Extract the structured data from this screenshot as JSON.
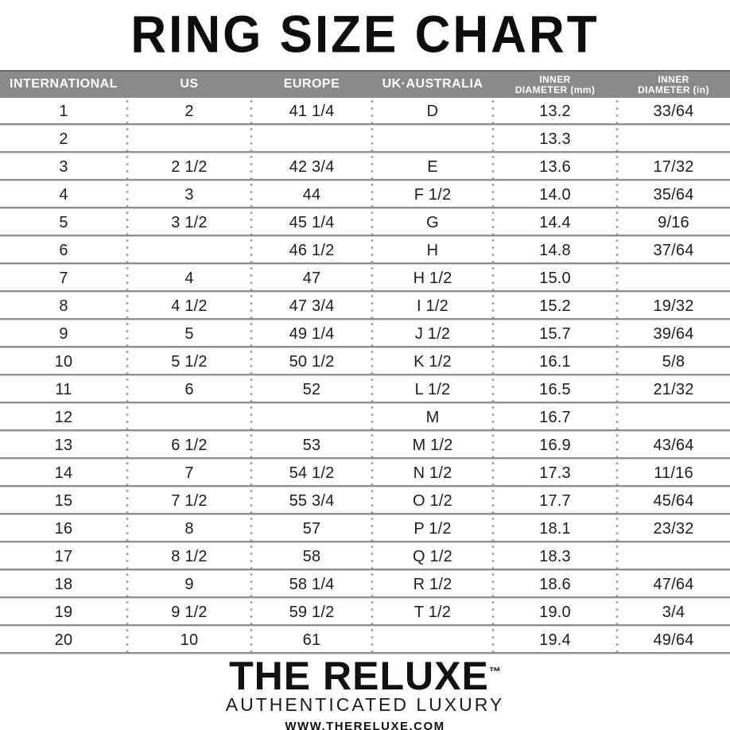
{
  "title": "RING SIZE CHART",
  "colors": {
    "header_background": "#8a8a8a",
    "header_text": "#ffffff",
    "row_line_dark": "#8f8f8f",
    "row_line_light": "#d2d2d2",
    "text": "#1a1a1a",
    "background": "#ffffff"
  },
  "chart_data": {
    "type": "table",
    "title": "RING SIZE CHART",
    "columns": [
      {
        "label": "INTERNATIONAL"
      },
      {
        "label": "US"
      },
      {
        "label": "EUROPE"
      },
      {
        "label": "UK·AUSTRALIA"
      },
      {
        "label": "INNER\nDIAMETER (mm)"
      },
      {
        "label": "INNER\nDIAMETER (in)"
      }
    ],
    "rows": [
      {
        "international": "1",
        "us": "2",
        "europe": "41 1/4",
        "uk_australia": "D",
        "inner_diameter_mm": "13.2",
        "inner_diameter_in": "33/64"
      },
      {
        "international": "2",
        "us": "",
        "europe": "",
        "uk_australia": "",
        "inner_diameter_mm": "13.3",
        "inner_diameter_in": ""
      },
      {
        "international": "3",
        "us": "2 1/2",
        "europe": "42 3/4",
        "uk_australia": "E",
        "inner_diameter_mm": "13.6",
        "inner_diameter_in": "17/32"
      },
      {
        "international": "4",
        "us": "3",
        "europe": "44",
        "uk_australia": "F 1/2",
        "inner_diameter_mm": "14.0",
        "inner_diameter_in": "35/64"
      },
      {
        "international": "5",
        "us": "3 1/2",
        "europe": "45 1/4",
        "uk_australia": "G",
        "inner_diameter_mm": "14.4",
        "inner_diameter_in": "9/16"
      },
      {
        "international": "6",
        "us": "",
        "europe": "46 1/2",
        "uk_australia": "H",
        "inner_diameter_mm": "14.8",
        "inner_diameter_in": "37/64"
      },
      {
        "international": "7",
        "us": "4",
        "europe": "47",
        "uk_australia": "H 1/2",
        "inner_diameter_mm": "15.0",
        "inner_diameter_in": ""
      },
      {
        "international": "8",
        "us": "4 1/2",
        "europe": "47 3/4",
        "uk_australia": "I 1/2",
        "inner_diameter_mm": "15.2",
        "inner_diameter_in": "19/32"
      },
      {
        "international": "9",
        "us": "5",
        "europe": "49 1/4",
        "uk_australia": "J 1/2",
        "inner_diameter_mm": "15.7",
        "inner_diameter_in": "39/64"
      },
      {
        "international": "10",
        "us": "5 1/2",
        "europe": "50 1/2",
        "uk_australia": "K 1/2",
        "inner_diameter_mm": "16.1",
        "inner_diameter_in": "5/8"
      },
      {
        "international": "11",
        "us": "6",
        "europe": "52",
        "uk_australia": "L 1/2",
        "inner_diameter_mm": "16.5",
        "inner_diameter_in": "21/32"
      },
      {
        "international": "12",
        "us": "",
        "europe": "",
        "uk_australia": "M",
        "inner_diameter_mm": "16.7",
        "inner_diameter_in": ""
      },
      {
        "international": "13",
        "us": "6 1/2",
        "europe": "53",
        "uk_australia": "M 1/2",
        "inner_diameter_mm": "16.9",
        "inner_diameter_in": "43/64"
      },
      {
        "international": "14",
        "us": "7",
        "europe": "54 1/2",
        "uk_australia": "N 1/2",
        "inner_diameter_mm": "17.3",
        "inner_diameter_in": "11/16"
      },
      {
        "international": "15",
        "us": "7 1/2",
        "europe": "55 3/4",
        "uk_australia": "O 1/2",
        "inner_diameter_mm": "17.7",
        "inner_diameter_in": "45/64"
      },
      {
        "international": "16",
        "us": "8",
        "europe": "57",
        "uk_australia": "P 1/2",
        "inner_diameter_mm": "18.1",
        "inner_diameter_in": "23/32"
      },
      {
        "international": "17",
        "us": "8 1/2",
        "europe": "58",
        "uk_australia": "Q 1/2",
        "inner_diameter_mm": "18.3",
        "inner_diameter_in": ""
      },
      {
        "international": "18",
        "us": "9",
        "europe": "58 1/4",
        "uk_australia": "R 1/2",
        "inner_diameter_mm": "18.6",
        "inner_diameter_in": "47/64"
      },
      {
        "international": "19",
        "us": "9 1/2",
        "europe": "59 1/2",
        "uk_australia": "T 1/2",
        "inner_diameter_mm": "19.0",
        "inner_diameter_in": "3/4"
      },
      {
        "international": "20",
        "us": "10",
        "europe": "61",
        "uk_australia": "",
        "inner_diameter_mm": "19.4",
        "inner_diameter_in": "49/64"
      }
    ]
  },
  "footer": {
    "brand": "THE RELUXE",
    "trademark": "™",
    "tagline": "AUTHENTICATED LUXURY",
    "website": "WWW.THERELUXE.COM"
  }
}
